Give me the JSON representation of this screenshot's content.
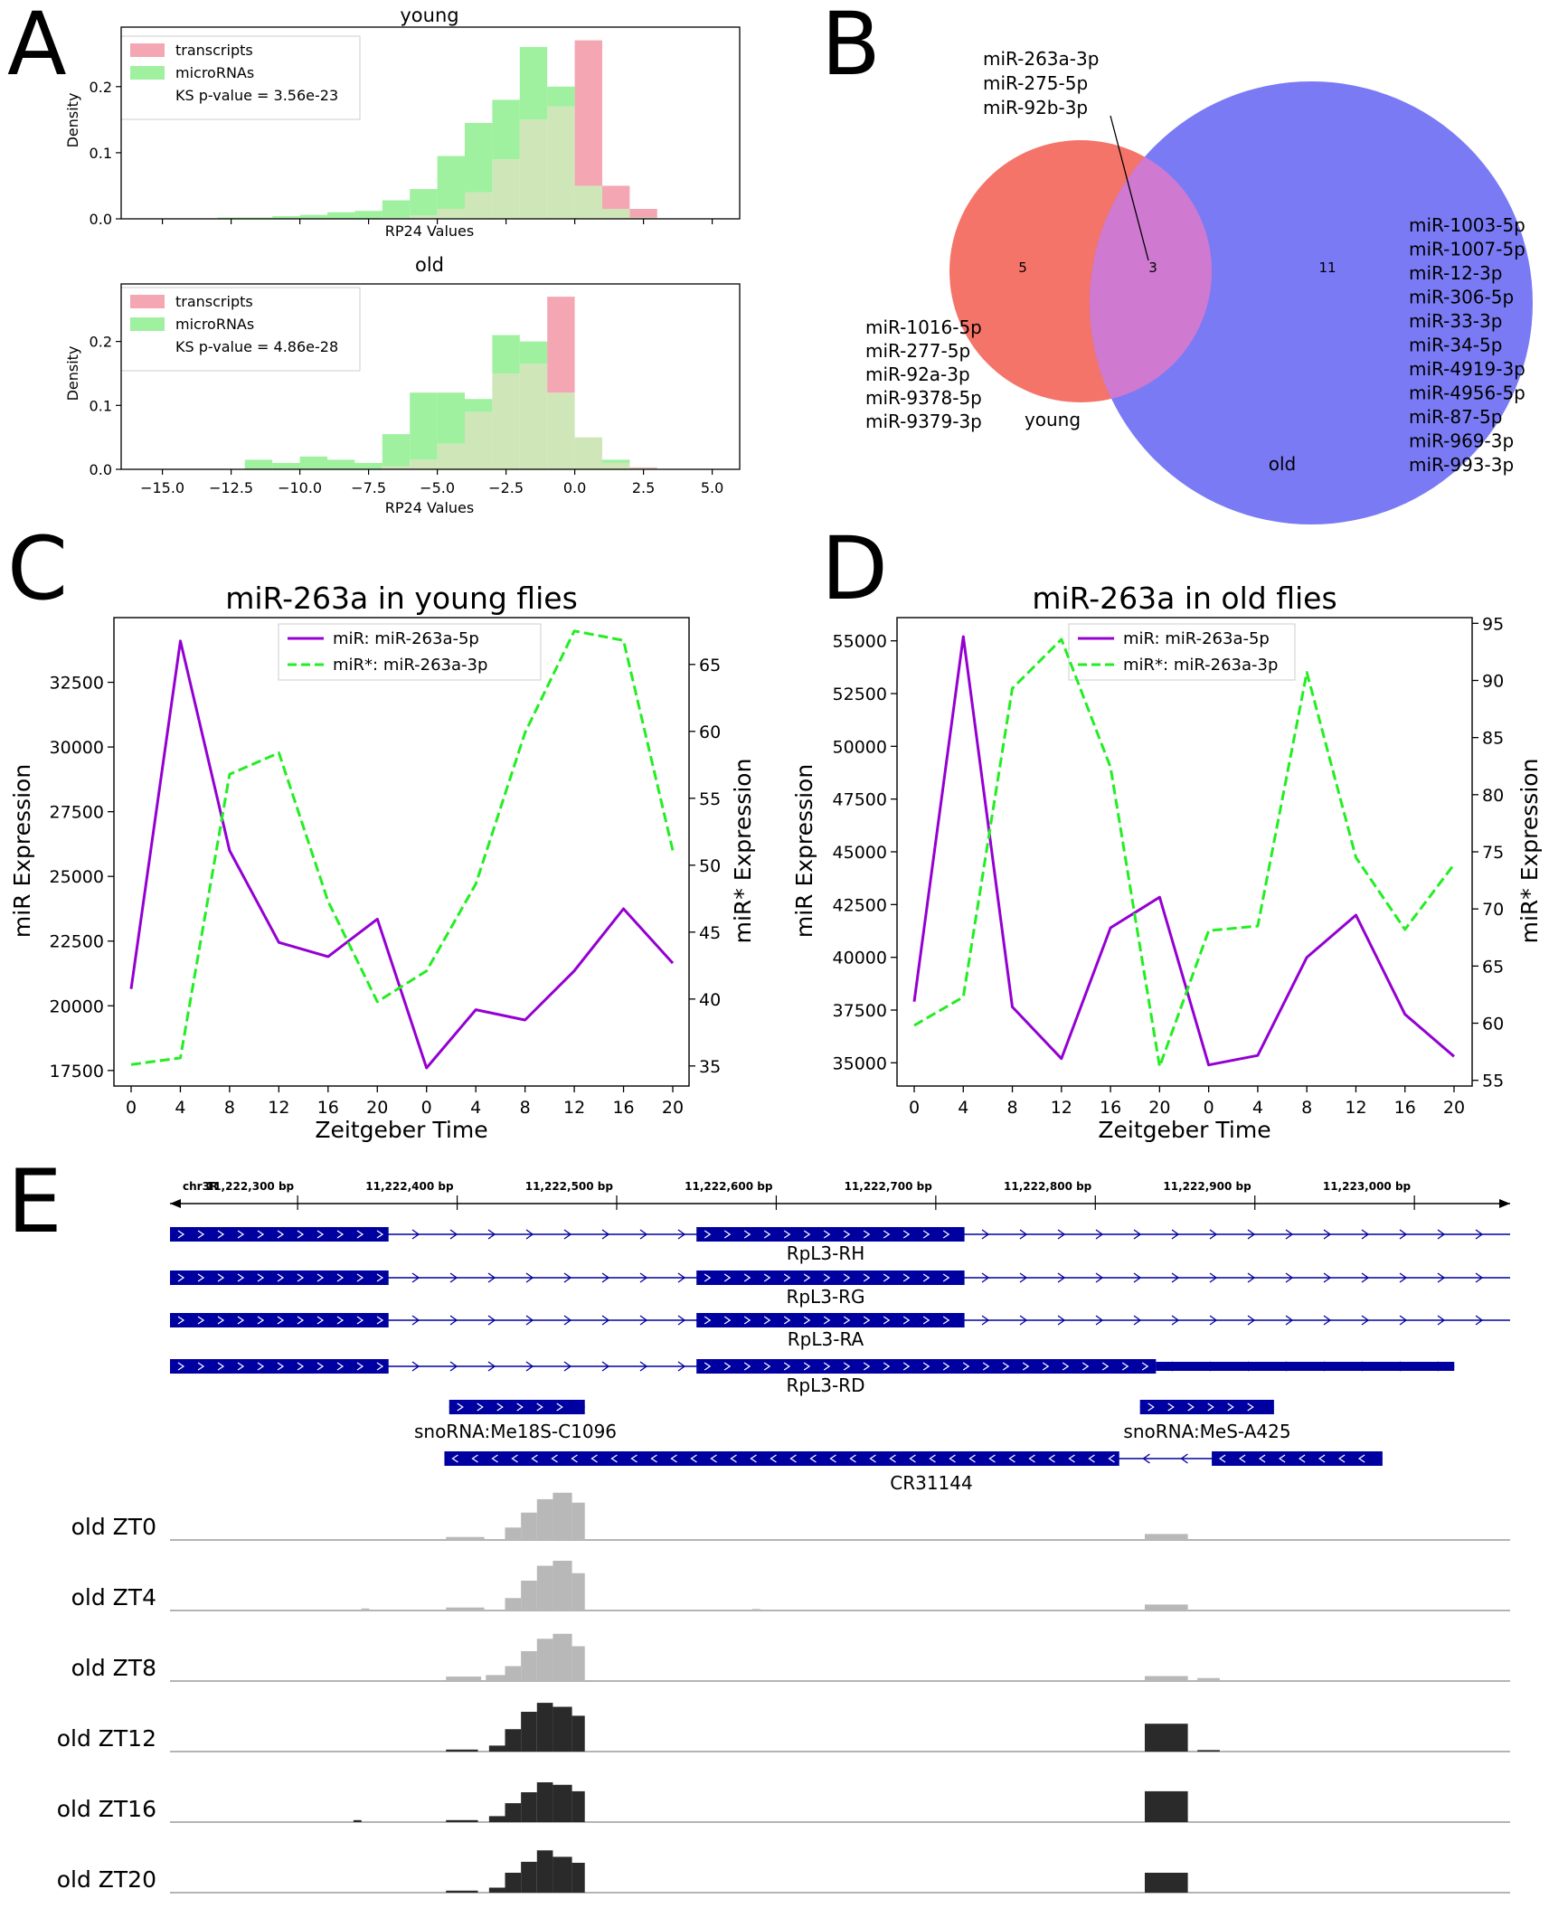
{
  "panels": {
    "A": {
      "label": "A",
      "charts": [
        {
          "title": "young",
          "xlabel": "RP24 Values",
          "ylabel": "Density",
          "xlim": [
            -16.5,
            6.0
          ],
          "ylim": [
            0,
            0.29
          ],
          "yticks": [
            {
              "v": 0,
              "t": "0.0"
            },
            {
              "v": 0.1,
              "t": "0.1"
            },
            {
              "v": 0.2,
              "t": "0.2"
            }
          ],
          "xticks": [],
          "legend": [
            "transcripts",
            "microRNAs",
            "KS p-value = 3.56e-23"
          ],
          "colors": {
            "transcripts": "#f4a6b2",
            "microRNAs": "#9ff09f",
            "overlap": "#cfe6b8"
          },
          "bins": [
            -13,
            -12,
            -11,
            -10,
            -9,
            -8,
            -7,
            -6,
            -5,
            -4,
            -3,
            -2,
            -1,
            0,
            1,
            2,
            3
          ],
          "micro": [
            0.002,
            0.002,
            0.004,
            0.006,
            0.01,
            0.012,
            0.028,
            0.045,
            0.095,
            0.145,
            0.18,
            0.26,
            0.2,
            0.05,
            0.015,
            0.002
          ],
          "trans": [
            0,
            0,
            0,
            0,
            0,
            0,
            0.002,
            0.005,
            0.015,
            0.04,
            0.09,
            0.15,
            0.17,
            0.27,
            0.05,
            0.015
          ]
        },
        {
          "title": "old",
          "xlabel": "RP24 Values",
          "ylabel": "Density",
          "xlim": [
            -16.5,
            6.0
          ],
          "ylim": [
            0,
            0.29
          ],
          "yticks": [
            {
              "v": 0,
              "t": "0.0"
            },
            {
              "v": 0.1,
              "t": "0.1"
            },
            {
              "v": 0.2,
              "t": "0.2"
            }
          ],
          "xticks": [
            {
              "v": -15,
              "t": "−15.0"
            },
            {
              "v": -12.5,
              "t": "−12.5"
            },
            {
              "v": -10,
              "t": "−10.0"
            },
            {
              "v": -7.5,
              "t": "−7.5"
            },
            {
              "v": -5,
              "t": "−5.0"
            },
            {
              "v": -2.5,
              "t": "−2.5"
            },
            {
              "v": 0,
              "t": "0.0"
            },
            {
              "v": 2.5,
              "t": "2.5"
            },
            {
              "v": 5,
              "t": "5.0"
            }
          ],
          "legend": [
            "transcripts",
            "microRNAs",
            "KS p-value = 4.86e-28"
          ],
          "colors": {
            "transcripts": "#f4a6b2",
            "microRNAs": "#9ff09f",
            "overlap": "#cfe6b8"
          },
          "bins": [
            -12,
            -11,
            -10,
            -9,
            -8,
            -7,
            -6,
            -5,
            -4,
            -3,
            -2,
            -1,
            0,
            1,
            2,
            3
          ],
          "micro": [
            0.015,
            0.01,
            0.02,
            0.015,
            0.01,
            0.055,
            0.12,
            0.12,
            0.11,
            0.21,
            0.2,
            0.12,
            0.05,
            0.015,
            0.002
          ],
          "trans": [
            0,
            0,
            0,
            0,
            0,
            0.005,
            0.015,
            0.04,
            0.09,
            0.15,
            0.165,
            0.27,
            0.05,
            0.01,
            0.003
          ]
        }
      ]
    },
    "B": {
      "label": "B",
      "young_label": "young",
      "old_label": "old",
      "young_only": "5",
      "both": "3",
      "old_only": "11",
      "shared_mirnas": [
        "miR-263a-3p",
        "miR-275-5p",
        "miR-92b-3p"
      ],
      "young_mirnas": [
        "miR-1016-5p",
        "miR-277-5p",
        "miR-92a-3p",
        "miR-9378-5p",
        "miR-9379-3p"
      ],
      "old_mirnas": [
        "miR-1003-5p",
        "miR-1007-5p",
        "miR-12-3p",
        "miR-306-5p",
        "miR-33-3p",
        "miR-34-5p",
        "miR-4919-3p",
        "miR-4956-5p",
        "miR-87-5p",
        "miR-969-3p",
        "miR-993-3p"
      ],
      "colors": {
        "young": "#f4746a",
        "old": "#7a7af5",
        "overlap": "#cf7ad0"
      }
    },
    "C": {
      "label": "C",
      "chart_data": {
        "type": "line",
        "title": "miR-263a in young flies",
        "xlabel": "Zeitgeber Time",
        "ylabel": "miR Expression",
        "y2label": "miR* Expression",
        "categories": [
          "0",
          "4",
          "8",
          "12",
          "16",
          "20",
          "0",
          "4",
          "8",
          "12",
          "16",
          "20"
        ],
        "ylim": [
          16900,
          35000
        ],
        "y2lim": [
          33.5,
          68.5
        ],
        "yticks": [
          17500,
          20000,
          22500,
          25000,
          27500,
          30000,
          32500
        ],
        "y2ticks": [
          35,
          40,
          45,
          50,
          55,
          60,
          65
        ],
        "series": [
          {
            "name": "miR: miR-263a-5p",
            "axis": "left",
            "color": "#9400d3",
            "dash": false,
            "values": [
              20650,
              34100,
              26000,
              22450,
              21900,
              23350,
              17600,
              19850,
              19450,
              21350,
              23750,
              21650
            ]
          },
          {
            "name": "miR*: miR-263a-3p",
            "axis": "right",
            "color": "#22ee22",
            "dash": true,
            "values": [
              35.1,
              35.6,
              56.8,
              58.4,
              47.3,
              39.8,
              42.1,
              48.6,
              59.9,
              67.5,
              66.8,
              51.1
            ]
          }
        ],
        "legend": "top-center"
      }
    },
    "D": {
      "label": "D",
      "chart_data": {
        "type": "line",
        "title": "miR-263a in old flies",
        "xlabel": "Zeitgeber Time",
        "ylabel": "miR Expression",
        "y2label": "miR* Expression",
        "categories": [
          "0",
          "4",
          "8",
          "12",
          "16",
          "20",
          "0",
          "4",
          "8",
          "12",
          "16",
          "20"
        ],
        "ylim": [
          33900,
          56100
        ],
        "y2lim": [
          54.5,
          95.5
        ],
        "yticks": [
          35000,
          37500,
          40000,
          42500,
          45000,
          47500,
          50000,
          52500,
          55000
        ],
        "y2ticks": [
          55,
          60,
          65,
          70,
          75,
          80,
          85,
          90,
          95
        ],
        "series": [
          {
            "name": "miR: miR-263a-5p",
            "axis": "left",
            "color": "#9400d3",
            "dash": false,
            "values": [
              37900,
              55200,
              37650,
              35200,
              41400,
              42850,
              34900,
              35350,
              40000,
              42000,
              37300,
              35300
            ]
          },
          {
            "name": "miR*: miR-263a-3p",
            "axis": "right",
            "color": "#22ee22",
            "dash": true,
            "values": [
              59.8,
              62.3,
              89.3,
              93.6,
              82.4,
              56.2,
              68.1,
              68.5,
              90.7,
              74.5,
              68.2,
              73.9
            ]
          }
        ],
        "legend": "top-center"
      }
    },
    "E": {
      "label": "E",
      "chrom": "chr3R",
      "coord_range": [
        11222220,
        11223060
      ],
      "coord_ticks": [
        {
          "v": 11222300,
          "t": "11,222,300 bp"
        },
        {
          "v": 11222400,
          "t": "11,222,400 bp"
        },
        {
          "v": 11222500,
          "t": "11,222,500 bp"
        },
        {
          "v": 11222600,
          "t": "11,222,600 bp"
        },
        {
          "v": 11222700,
          "t": "11,222,700 bp"
        },
        {
          "v": 11222800,
          "t": "11,222,800 bp"
        },
        {
          "v": 11222900,
          "t": "11,222,900 bp"
        },
        {
          "v": 11223000,
          "t": "11,223,000 bp"
        }
      ],
      "genes": [
        {
          "name": "RpL3-RH",
          "strand": "+",
          "start": 11222220,
          "end": 11223060,
          "exons": [
            [
              11222220,
              11222357
            ],
            [
              11222550,
              11222718
            ]
          ]
        },
        {
          "name": "RpL3-RG",
          "strand": "+",
          "start": 11222220,
          "end": 11223060,
          "exons": [
            [
              11222220,
              11222357
            ],
            [
              11222550,
              11222718
            ]
          ]
        },
        {
          "name": "RpL3-RA",
          "strand": "+",
          "start": 11222220,
          "end": 11223060,
          "exons": [
            [
              11222220,
              11222357
            ],
            [
              11222550,
              11222718
            ]
          ]
        },
        {
          "name": "RpL3-RD",
          "strand": "+",
          "start": 11222220,
          "end": 11223025,
          "exons": [
            [
              11222220,
              11222357
            ],
            [
              11222550,
              11222838
            ],
            [
              11222838,
              11223025
            ]
          ]
        },
        {
          "name": "snoRNA:Me18S-C1096",
          "strand": "+",
          "start": 11222395,
          "end": 11222480,
          "exons": [
            [
              11222395,
              11222480
            ]
          ]
        },
        {
          "name": "snoRNA:MeS-A425",
          "strand": "+",
          "start": 11222828,
          "end": 11222912,
          "exons": [
            [
              11222828,
              11222912
            ]
          ]
        },
        {
          "name": "CR31144",
          "strand": "-",
          "start": 11222392,
          "end": 11222980,
          "exons": [
            [
              11222392,
              11222815
            ],
            [
              11222873,
              11222980
            ]
          ]
        }
      ],
      "tracks": [
        {
          "label": "old ZT0",
          "color": "#b8b8b8",
          "peaks": [
            [
              11222393,
              11222417,
              0.06
            ],
            [
              11222430,
              11222440,
              0.25
            ],
            [
              11222440,
              11222450,
              0.55
            ],
            [
              11222450,
              11222460,
              0.82
            ],
            [
              11222460,
              11222472,
              0.95
            ],
            [
              11222472,
              11222480,
              0.75
            ],
            [
              11222831,
              11222858,
              0.12
            ]
          ]
        },
        {
          "label": "old ZT4",
          "color": "#b8b8b8",
          "peaks": [
            [
              11222340,
              11222345,
              0.04
            ],
            [
              11222393,
              11222417,
              0.06
            ],
            [
              11222430,
              11222440,
              0.25
            ],
            [
              11222440,
              11222450,
              0.6
            ],
            [
              11222450,
              11222460,
              0.9
            ],
            [
              11222460,
              11222472,
              1.0
            ],
            [
              11222472,
              11222480,
              0.75
            ],
            [
              11222585,
              11222590,
              0.03
            ],
            [
              11222831,
              11222858,
              0.12
            ]
          ]
        },
        {
          "label": "old ZT8",
          "color": "#b8b8b8",
          "peaks": [
            [
              11222393,
              11222415,
              0.09
            ],
            [
              11222418,
              11222430,
              0.12
            ],
            [
              11222430,
              11222440,
              0.3
            ],
            [
              11222440,
              11222450,
              0.6
            ],
            [
              11222450,
              11222460,
              0.85
            ],
            [
              11222460,
              11222472,
              0.95
            ],
            [
              11222472,
              11222480,
              0.7
            ],
            [
              11222831,
              11222858,
              0.1
            ],
            [
              11222864,
              11222878,
              0.06
            ]
          ]
        },
        {
          "label": "old ZT12",
          "color": "#2a2a2a",
          "peaks": [
            [
              11222393,
              11222413,
              0.04
            ],
            [
              11222420,
              11222430,
              0.12
            ],
            [
              11222430,
              11222440,
              0.45
            ],
            [
              11222440,
              11222450,
              0.8
            ],
            [
              11222450,
              11222460,
              0.98
            ],
            [
              11222460,
              11222472,
              0.9
            ],
            [
              11222472,
              11222480,
              0.72
            ],
            [
              11222831,
              11222858,
              0.56
            ],
            [
              11222864,
              11222878,
              0.03
            ]
          ]
        },
        {
          "label": "old ZT16",
          "color": "#2a2a2a",
          "peaks": [
            [
              11222335,
              11222340,
              0.04
            ],
            [
              11222393,
              11222413,
              0.04
            ],
            [
              11222420,
              11222430,
              0.12
            ],
            [
              11222430,
              11222440,
              0.38
            ],
            [
              11222440,
              11222450,
              0.6
            ],
            [
              11222450,
              11222460,
              0.8
            ],
            [
              11222460,
              11222472,
              0.75
            ],
            [
              11222472,
              11222480,
              0.62
            ],
            [
              11222831,
              11222858,
              0.62
            ]
          ]
        },
        {
          "label": "old ZT20",
          "color": "#2a2a2a",
          "peaks": [
            [
              11222393,
              11222413,
              0.04
            ],
            [
              11222420,
              11222430,
              0.1
            ],
            [
              11222430,
              11222440,
              0.4
            ],
            [
              11222440,
              11222450,
              0.62
            ],
            [
              11222450,
              11222460,
              0.85
            ],
            [
              11222460,
              11222472,
              0.72
            ],
            [
              11222472,
              11222480,
              0.6
            ],
            [
              11222831,
              11222858,
              0.4
            ]
          ]
        }
      ]
    }
  }
}
